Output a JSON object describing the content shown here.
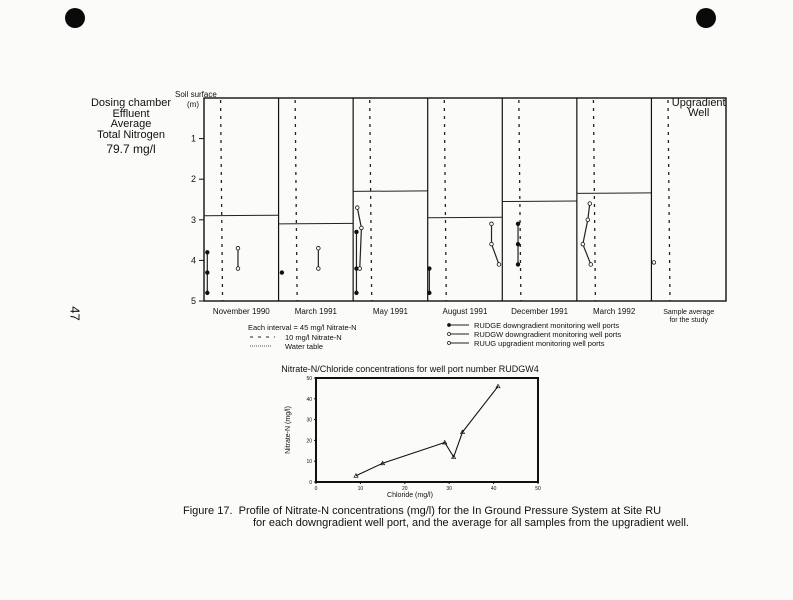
{
  "page_number": "47",
  "dosing_chamber": {
    "lines": [
      "Dosing chamber",
      "Effluent",
      "Average",
      "Total Nitrogen"
    ],
    "value": "79.7 mg/l"
  },
  "chart_data": [
    {
      "type": "scatter",
      "subtype": "depth-profile panels",
      "y_axis_title": [
        "Soil surface",
        "(m)"
      ],
      "y_ticks": [
        "1",
        "2",
        "3",
        "4",
        "5"
      ],
      "ylim": [
        0,
        5
      ],
      "y_inverted": true,
      "interval_mg_per_l": 45,
      "reference_line_mg_per_l": 10,
      "panels": [
        {
          "label": "November 1990",
          "water_table_m": 2.9,
          "points": [
            {
              "series": "RUDGE",
              "values": [
                [
                  2,
                  3.8
                ],
                [
                  2,
                  4.3
                ],
                [
                  2,
                  4.8
                ]
              ]
            },
            {
              "series": "RUDGW",
              "values": [
                [
                  20.5,
                  3.7
                ],
                [
                  20.5,
                  4.2
                ]
              ]
            }
          ]
        },
        {
          "label": "March 1991",
          "water_table_m": 3.1,
          "points": [
            {
              "series": "RUDGE",
              "values": [
                [
                  2,
                  4.3
                ]
              ]
            },
            {
              "series": "RUDGW",
              "values": [
                [
                  24,
                  3.7
                ],
                [
                  24,
                  4.2
                ]
              ]
            }
          ]
        },
        {
          "label": "May 1991",
          "water_table_m": 2.3,
          "points": [
            {
              "series": "RUDGE",
              "values": [
                [
                  2,
                  3.3
                ],
                [
                  2,
                  4.2
                ],
                [
                  2,
                  4.8
                ]
              ]
            },
            {
              "series": "RUDGW",
              "values": [
                [
                  2.5,
                  2.7
                ],
                [
                  5,
                  3.2
                ],
                [
                  4,
                  4.2
                ]
              ]
            }
          ]
        },
        {
          "label": "August 1991",
          "water_table_m": 2.95,
          "points": [
            {
              "series": "RUDGE",
              "values": [
                [
                  1,
                  4.2
                ],
                [
                  1,
                  4.8
                ]
              ]
            },
            {
              "series": "RUDGW",
              "values": [
                [
                  38.5,
                  3.1
                ],
                [
                  38.5,
                  3.6
                ],
                [
                  43,
                  4.1
                ]
              ]
            }
          ]
        },
        {
          "label": "December 1991",
          "water_table_m": 2.55,
          "points": [
            {
              "series": "RUDGE",
              "values": [
                [
                  9.5,
                  3.1
                ],
                [
                  9.5,
                  3.6
                ],
                [
                  9.5,
                  4.1
                ]
              ]
            }
          ]
        },
        {
          "label": "March 1992",
          "water_table_m": 2.35,
          "points": [
            {
              "series": "RUDGW",
              "values": [
                [
                  7.8,
                  2.6
                ],
                [
                  6.6,
                  3.0
                ],
                [
                  3.6,
                  3.6
                ],
                [
                  8.4,
                  4.1
                ]
              ]
            }
          ]
        },
        {
          "label": "Sample average\nfor the study",
          "label_lines": [
            "Sample average",
            "for the study"
          ],
          "title_lines": [
            "Upgradient",
            "Well"
          ],
          "water_table_m": null,
          "points": [
            {
              "series": "RUUG",
              "values": [
                [
                  1.5,
                  4.05
                ]
              ]
            }
          ]
        }
      ],
      "legend_left": {
        "interval": "Each interval = 45 mg/l Nitrate-N",
        "dashed": "10 mg/l Nitrate-N",
        "water_table": "Water table"
      },
      "legend_right": [
        {
          "series": "RUDGE",
          "label": "RUDGE downgradient monitoring well ports",
          "marker": "filled"
        },
        {
          "series": "RUDGW",
          "label": "RUDGW downgradient monitoring well ports",
          "marker": "open"
        },
        {
          "series": "RUUG",
          "label": "RUUG upgradient monitoring well ports",
          "marker": "open"
        }
      ]
    },
    {
      "type": "line",
      "title": "Nitrate-N/Chloride concentrations for well port number RUDGW4",
      "xlabel": "Chloride (mg/l)",
      "ylabel": "Nitrate-N (mg/l)",
      "xlim": [
        0,
        50
      ],
      "ylim": [
        0,
        50
      ],
      "x_ticks": [
        "0",
        "10",
        "20",
        "30",
        "40",
        "50"
      ],
      "y_ticks": [
        "0",
        "10",
        "20",
        "30",
        "40",
        "50"
      ],
      "x": [
        9,
        15,
        29,
        31,
        33,
        41
      ],
      "y": [
        3,
        9,
        19,
        12,
        24,
        46
      ]
    }
  ],
  "caption": {
    "label": "Figure 17.",
    "line1": "Profile of Nitrate-N concentrations (mg/l) for the In Ground Pressure System at Site RU",
    "line2": "for each downgradient well port, and the average for all samples from the upgradient well."
  }
}
